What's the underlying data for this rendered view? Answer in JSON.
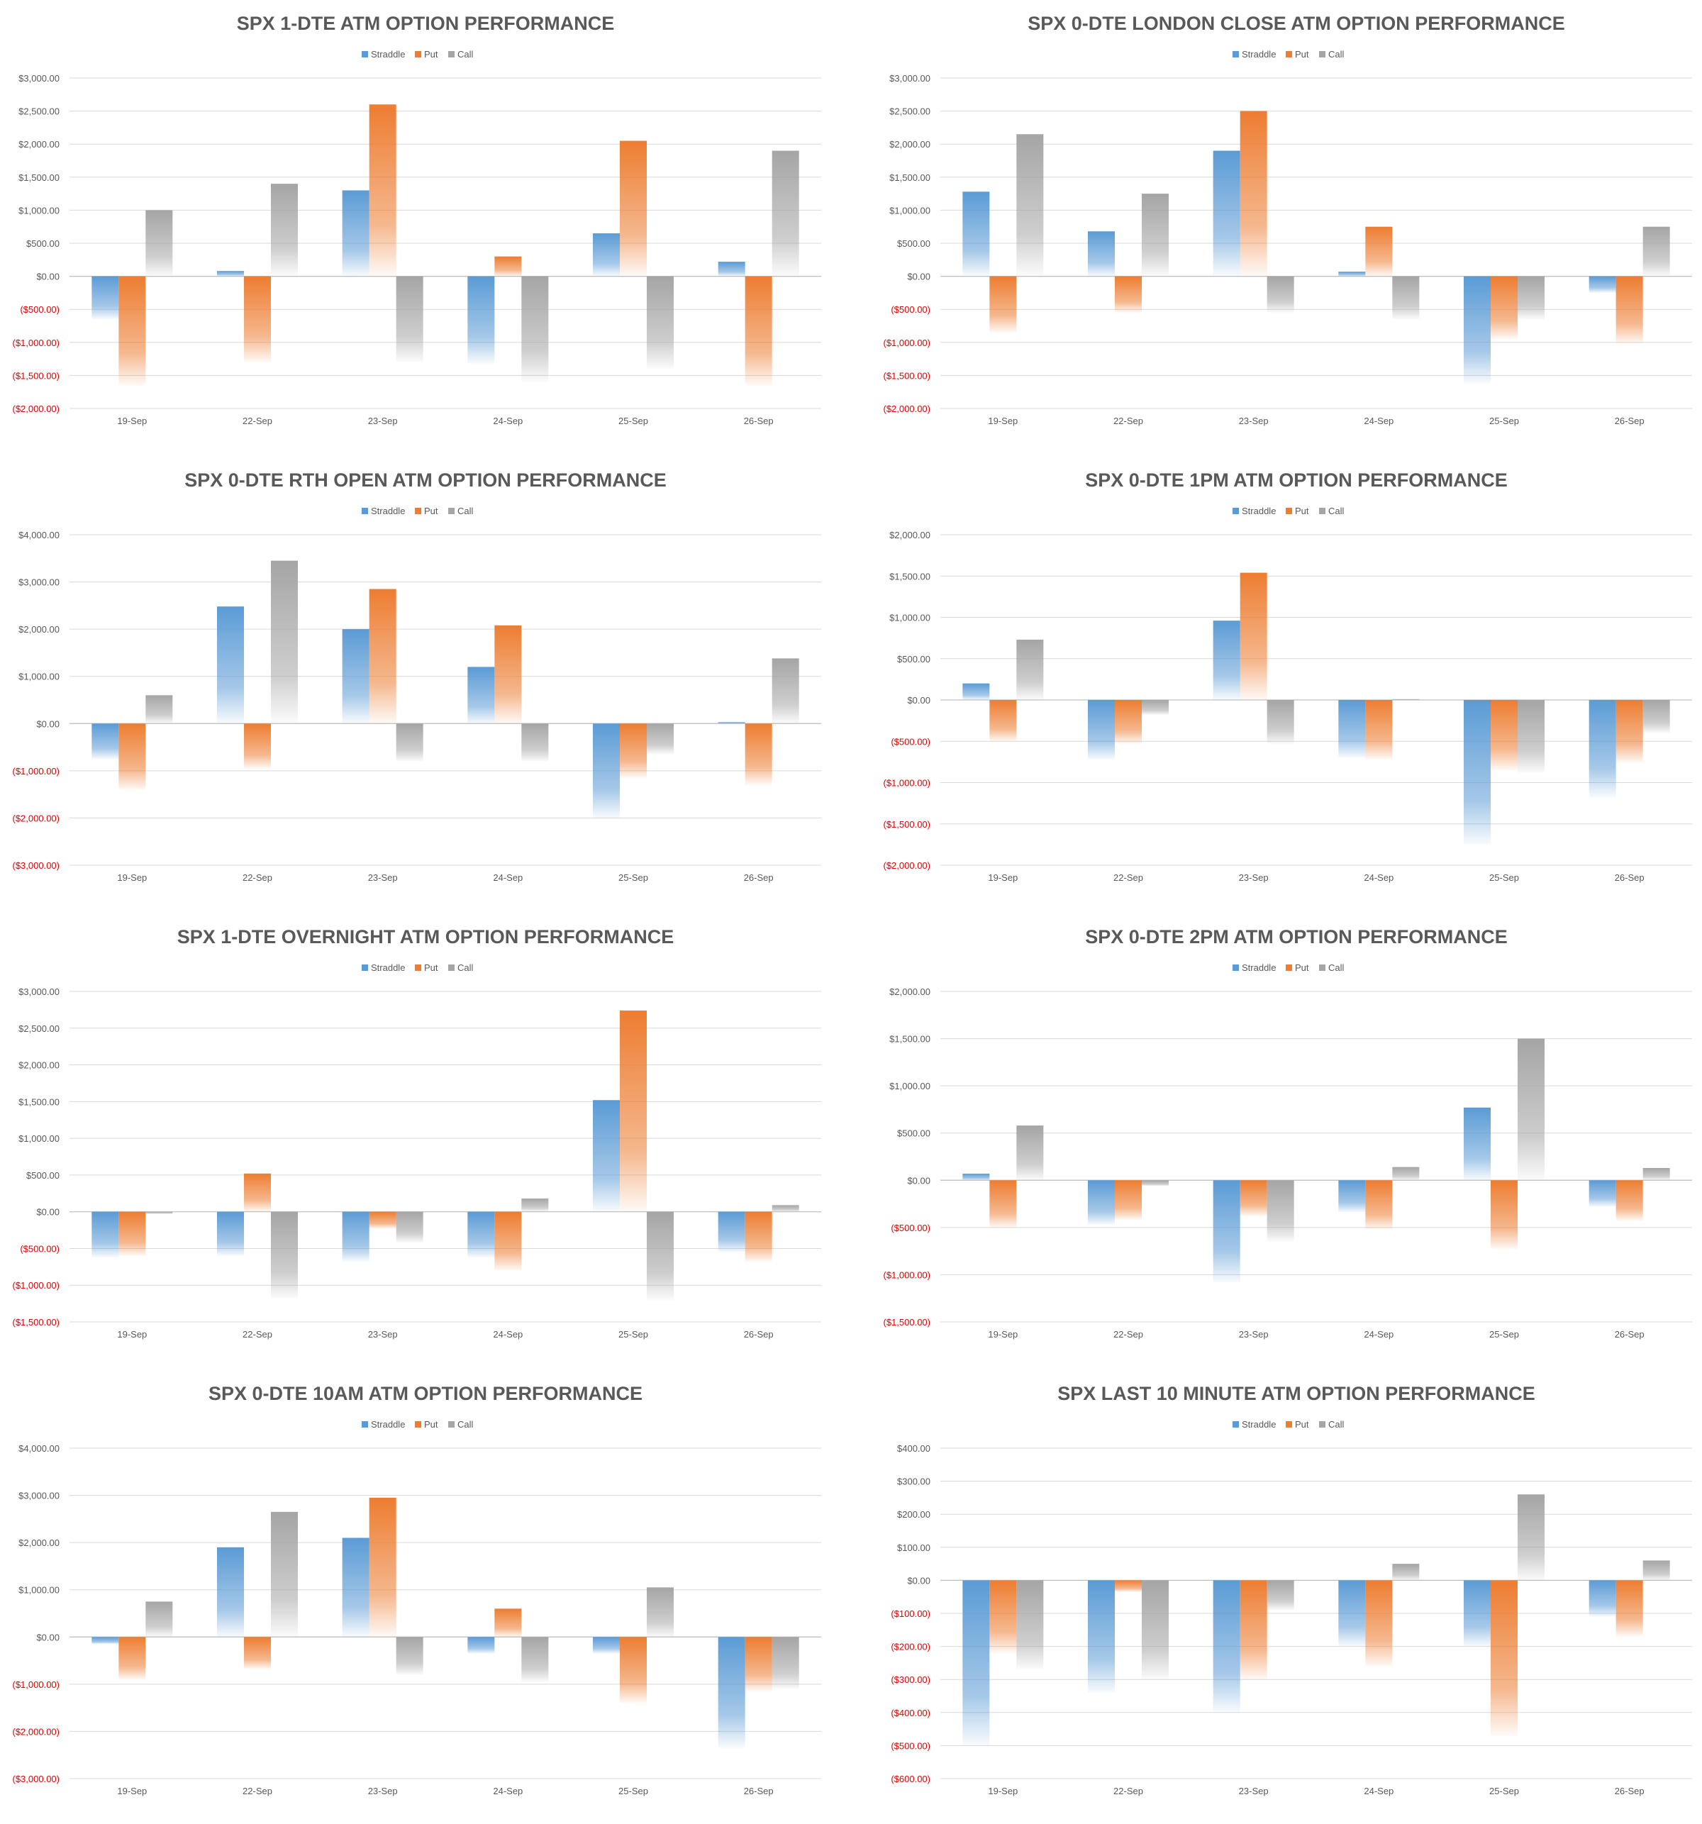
{
  "colors": {
    "straddle": "#5b9bd5",
    "put": "#ed7d31",
    "call": "#a5a5a5",
    "negative_tick": "#e00000",
    "text": "#595959",
    "grid": "#d9d9d9"
  },
  "chart_data": [
    {
      "type": "bar",
      "title": "SPX 1-DTE ATM OPTION PERFORMANCE",
      "categories": [
        "19-Sep",
        "22-Sep",
        "23-Sep",
        "24-Sep",
        "25-Sep",
        "26-Sep"
      ],
      "series": [
        {
          "name": "Straddle",
          "values": [
            -650,
            80,
            1300,
            -1320,
            650,
            220
          ]
        },
        {
          "name": "Put",
          "values": [
            -1650,
            -1300,
            2600,
            300,
            2050,
            -1650
          ]
        },
        {
          "name": "Call",
          "values": [
            1000,
            1400,
            -1300,
            -1600,
            -1400,
            1900
          ]
        }
      ],
      "ylim": [
        -2000,
        3000
      ],
      "ystep": 500,
      "yticks": [
        "($2,000.00)",
        "($1,500.00)",
        "($1,000.00)",
        "($500.00)",
        "$0.00",
        "$500.00",
        "$1,000.00",
        "$1,500.00",
        "$2,000.00",
        "$2,500.00",
        "$3,000.00"
      ]
    },
    {
      "type": "bar",
      "title": "SPX 0-DTE  LONDON CLOSE ATM OPTION PERFORMANCE",
      "categories": [
        "19-Sep",
        "22-Sep",
        "23-Sep",
        "24-Sep",
        "25-Sep",
        "26-Sep"
      ],
      "series": [
        {
          "name": "Straddle",
          "values": [
            1280,
            680,
            1900,
            70,
            -1620,
            -250
          ]
        },
        {
          "name": "Put",
          "values": [
            -850,
            -550,
            2500,
            750,
            -950,
            -1020
          ]
        },
        {
          "name": "Call",
          "values": [
            2150,
            1250,
            -550,
            -650,
            -650,
            750
          ]
        }
      ],
      "ylim": [
        -2000,
        3000
      ],
      "ystep": 500,
      "yticks": [
        "($2,000.00)",
        "($1,500.00)",
        "($1,000.00)",
        "($500.00)",
        "$0.00",
        "$500.00",
        "$1,000.00",
        "$1,500.00",
        "$2,000.00",
        "$2,500.00",
        "$3,000.00"
      ]
    },
    {
      "type": "bar",
      "title": "SPX 0-DTE RTH OPEN ATM OPTION PERFORMANCE",
      "categories": [
        "19-Sep",
        "22-Sep",
        "23-Sep",
        "24-Sep",
        "25-Sep",
        "26-Sep"
      ],
      "series": [
        {
          "name": "Straddle",
          "values": [
            -750,
            2480,
            2000,
            1200,
            -2000,
            30
          ]
        },
        {
          "name": "Put",
          "values": [
            -1400,
            -950,
            2850,
            2080,
            -1150,
            -1300
          ]
        },
        {
          "name": "Call",
          "values": [
            600,
            3450,
            -800,
            -800,
            -650,
            1380
          ]
        }
      ],
      "ylim": [
        -3000,
        4000
      ],
      "ystep": 1000,
      "yticks": [
        "($3,000.00)",
        "($2,000.00)",
        "($1,000.00)",
        "$0.00",
        "$1,000.00",
        "$2,000.00",
        "$3,000.00",
        "$4,000.00"
      ]
    },
    {
      "type": "bar",
      "title": "SPX 0-DTE 1PM ATM OPTION PERFORMANCE",
      "categories": [
        "19-Sep",
        "22-Sep",
        "23-Sep",
        "24-Sep",
        "25-Sep",
        "26-Sep"
      ],
      "series": [
        {
          "name": "Straddle",
          "values": [
            200,
            -720,
            960,
            -700,
            -1750,
            -1180
          ]
        },
        {
          "name": "Put",
          "values": [
            -500,
            -530,
            1540,
            -720,
            -850,
            -760
          ]
        },
        {
          "name": "Call",
          "values": [
            730,
            -180,
            -530,
            10,
            -880,
            -400
          ]
        }
      ],
      "ylim": [
        -2000,
        2000
      ],
      "ystep": 500,
      "yticks": [
        "($2,000.00)",
        "($1,500.00)",
        "($1,000.00)",
        "($500.00)",
        "$0.00",
        "$500.00",
        "$1,000.00",
        "$1,500.00",
        "$2,000.00"
      ]
    },
    {
      "type": "bar",
      "title": "SPX 1-DTE OVERNIGHT ATM OPTION PERFORMANCE",
      "categories": [
        "19-Sep",
        "22-Sep",
        "23-Sep",
        "24-Sep",
        "25-Sep",
        "26-Sep"
      ],
      "series": [
        {
          "name": "Straddle",
          "values": [
            -620,
            -600,
            -680,
            -620,
            1520,
            -550
          ]
        },
        {
          "name": "Put",
          "values": [
            -600,
            520,
            -230,
            -800,
            2740,
            -680
          ]
        },
        {
          "name": "Call",
          "values": [
            -30,
            -1180,
            -420,
            180,
            -1200,
            90
          ]
        }
      ],
      "ylim": [
        -1500,
        3000
      ],
      "ystep": 500,
      "yticks": [
        "($1,500.00)",
        "($1,000.00)",
        "($500.00)",
        "$0.00",
        "$500.00",
        "$1,000.00",
        "$1,500.00",
        "$2,000.00",
        "$2,500.00",
        "$3,000.00"
      ]
    },
    {
      "type": "bar",
      "title": "SPX 0-DTE 2PM ATM OPTION PERFORMANCE",
      "categories": [
        "19-Sep",
        "22-Sep",
        "23-Sep",
        "24-Sep",
        "25-Sep",
        "26-Sep"
      ],
      "series": [
        {
          "name": "Straddle",
          "values": [
            70,
            -470,
            -1080,
            -340,
            770,
            -280
          ]
        },
        {
          "name": "Put",
          "values": [
            -500,
            -420,
            -380,
            -520,
            -730,
            -430
          ]
        },
        {
          "name": "Call",
          "values": [
            580,
            -60,
            -650,
            140,
            1500,
            130
          ]
        }
      ],
      "ylim": [
        -1500,
        2000
      ],
      "ystep": 500,
      "yticks": [
        "($1,500.00)",
        "($1,000.00)",
        "($500.00)",
        "$0.00",
        "$500.00",
        "$1,000.00",
        "$1,500.00",
        "$2,000.00"
      ]
    },
    {
      "type": "bar",
      "title": "SPX 0-DTE 10AM ATM OPTION PERFORMANCE",
      "categories": [
        "19-Sep",
        "22-Sep",
        "23-Sep",
        "24-Sep",
        "25-Sep",
        "26-Sep"
      ],
      "series": [
        {
          "name": "Straddle",
          "values": [
            -150,
            1900,
            2100,
            -350,
            -350,
            -2350
          ]
        },
        {
          "name": "Put",
          "values": [
            -900,
            -680,
            2950,
            600,
            -1400,
            -1150
          ]
        },
        {
          "name": "Call",
          "values": [
            750,
            2650,
            -800,
            -950,
            1050,
            -1100
          ]
        }
      ],
      "ylim": [
        -3000,
        4000
      ],
      "ystep": 1000,
      "yticks": [
        "($3,000.00)",
        "($2,000.00)",
        "($1,000.00)",
        "$0.00",
        "$1,000.00",
        "$2,000.00",
        "$3,000.00",
        "$4,000.00"
      ]
    },
    {
      "type": "bar",
      "title": "SPX LAST 10 MINUTE ATM OPTION PERFORMANCE",
      "categories": [
        "19-Sep",
        "22-Sep",
        "23-Sep",
        "24-Sep",
        "25-Sep",
        "26-Sep"
      ],
      "series": [
        {
          "name": "Straddle",
          "values": [
            -500,
            -340,
            -400,
            -200,
            -200,
            -110
          ]
        },
        {
          "name": "Put",
          "values": [
            -220,
            -35,
            -300,
            -260,
            -470,
            -170
          ]
        },
        {
          "name": "Call",
          "values": [
            -270,
            -300,
            -90,
            50,
            260,
            60
          ]
        }
      ],
      "ylim": [
        -600,
        400
      ],
      "ystep": 100,
      "yticks": [
        "($600.00)",
        "($500.00)",
        "($400.00)",
        "($300.00)",
        "($200.00)",
        "($100.00)",
        "$0.00",
        "$100.00",
        "$200.00",
        "$300.00",
        "$400.00"
      ]
    }
  ]
}
